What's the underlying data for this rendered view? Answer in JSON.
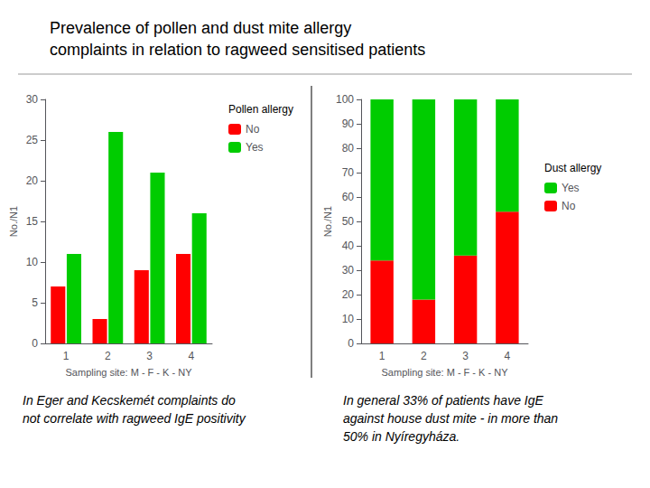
{
  "title": "Prevalence of pollen and dust mite allergy\ncomplaints in relation to ragweed sensitised patients",
  "chart_data": [
    {
      "type": "bar",
      "xlabel": "Sampling site: M - F - K - NY",
      "ylabel": "No./N1",
      "categories": [
        "1",
        "2",
        "3",
        "4"
      ],
      "series": [
        {
          "name": "No",
          "color": "#ff0000",
          "values": [
            7,
            3,
            9,
            11
          ]
        },
        {
          "name": "Yes",
          "color": "#00cc00",
          "values": [
            11,
            26,
            21,
            16
          ]
        }
      ],
      "ylim": [
        0,
        30
      ],
      "yticks": [
        0,
        5,
        10,
        15,
        20,
        25,
        30
      ],
      "grid": false,
      "legend": "right",
      "legend_title": "Pollen allergy",
      "annotations": [
        "In Eger and Kecskemét complaints do\nnot correlate with ragweed IgE positivity"
      ]
    },
    {
      "type": "bar",
      "xlabel": "Sampling site: M - F - K - NY",
      "ylabel": "No./N1",
      "categories": [
        "1",
        "2",
        "3",
        "4"
      ],
      "series": [
        {
          "name": "No",
          "color": "#ff0000",
          "values": [
            34,
            18,
            36,
            54
          ]
        },
        {
          "name": "Yes",
          "color": "#00cc00",
          "values": [
            66,
            82,
            64,
            46
          ]
        }
      ],
      "ylim": [
        0,
        100
      ],
      "yticks": [
        0,
        10,
        20,
        30,
        40,
        50,
        60,
        70,
        80,
        90,
        100
      ],
      "stacked": true,
      "grid": false,
      "legend": "right",
      "legend_title": "Dust allergy",
      "annotations": [
        "In general 33% of patients have IgE\nagainst house dust mite - in more than\n50% in Nyíregyháza."
      ]
    }
  ]
}
